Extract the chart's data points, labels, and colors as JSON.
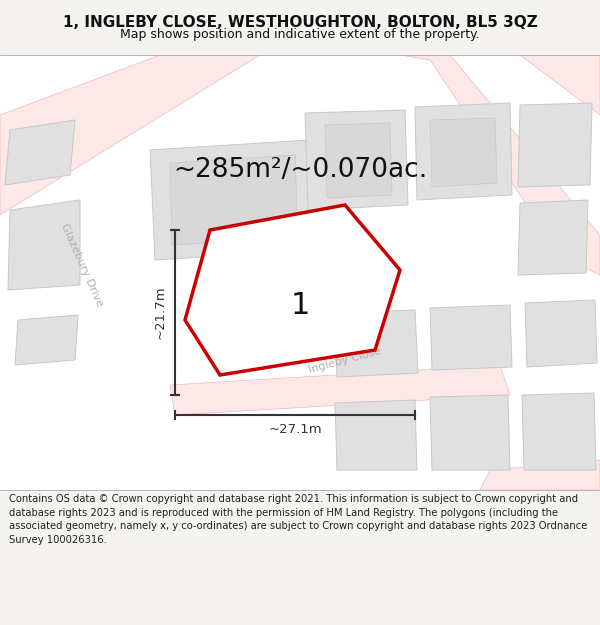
{
  "title_line1": "1, INGLEBY CLOSE, WESTHOUGHTON, BOLTON, BL5 3QZ",
  "title_line2": "Map shows position and indicative extent of the property.",
  "area_text": "~285m²/~0.070ac.",
  "dim_width": "~27.1m",
  "dim_height": "~21.7m",
  "plot_label": "1",
  "footer": "Contains OS data © Crown copyright and database right 2021. This information is subject to Crown copyright and database rights 2023 and is reproduced with the permission of HM Land Registry. The polygons (including the associated geometry, namely x, y co-ordinates) are subject to Crown copyright and database rights 2023 Ordnance Survey 100026316.",
  "bg_color": "#f5f3f0",
  "map_bg": "#ffffff",
  "road_fill": "#fde8e8",
  "road_edge": "#f0b8b8",
  "building_fill": "#e0e0e0",
  "building_edge": "#c8c8c8",
  "plot_fill": "#ffffff",
  "plot_edge": "#cc0000",
  "dim_color": "#333333",
  "text_color": "#111111",
  "road_label_color": "#b0b0b0",
  "footer_color": "#222222"
}
